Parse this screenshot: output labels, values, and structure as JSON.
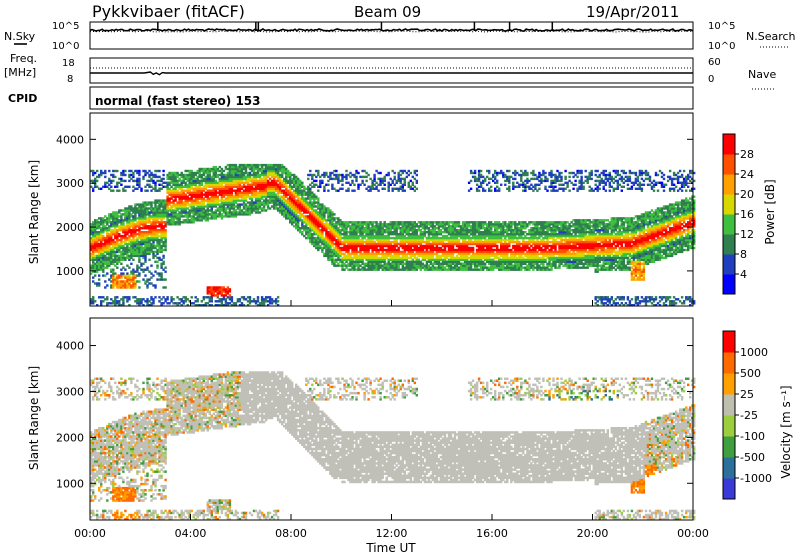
{
  "header": {
    "station": "Pykkvibaer (fitACF)",
    "beam": "Beam 09",
    "date": "19/Apr/2011"
  },
  "noise_panel": {
    "left_label": "N.Sky",
    "left_ticks": [
      "10^5",
      "10^0"
    ],
    "right_label": "N.Search",
    "right_ticks": [
      "10^5",
      "10^0"
    ]
  },
  "freq_panel": {
    "left_label_1": "Freq.",
    "left_label_2": "[MHz]",
    "left_ticks": [
      "18",
      "8"
    ],
    "right_label": "Nave",
    "right_ticks": [
      "60",
      "0"
    ]
  },
  "cpid_panel": {
    "label": "CPID",
    "text": "normal (fast stereo) 153"
  },
  "colors": {
    "power_scale": [
      "#0000ff",
      "#1f3fbf",
      "#2f7f4f",
      "#3fbf3f",
      "#d8d800",
      "#ff9f00",
      "#ff5000",
      "#ff0000"
    ],
    "velocity_scale": [
      "#3a3ad8",
      "#2c6f9a",
      "#3f9f3f",
      "#9bcf3f",
      "#bfbfb0",
      "#ffa000",
      "#ff6a00",
      "#ff0000"
    ],
    "ground_scatter": "#c0c0b8"
  },
  "chart_data": [
    {
      "type": "heatmap",
      "name": "power",
      "ylabel": "Slant Range [km]",
      "yticks": [
        "1000",
        "2000",
        "3000",
        "4000"
      ],
      "ylim": [
        200,
        4600
      ],
      "xlim": [
        0,
        24
      ],
      "colorbar_label": "Power [dB]",
      "colorbar_ticks": [
        "4",
        "8",
        "12",
        "16",
        "20",
        "24",
        "28"
      ],
      "colorbar_range": [
        0,
        30
      ]
    },
    {
      "type": "heatmap",
      "name": "velocity",
      "ylabel": "Slant Range [km]",
      "yticks": [
        "1000",
        "2000",
        "3000",
        "4000"
      ],
      "ylim": [
        200,
        4600
      ],
      "xlim": [
        0,
        24
      ],
      "colorbar_label": "Velocity [m s⁻¹]",
      "colorbar_ticks": [
        "1000",
        "500",
        "25",
        "-25",
        "-100",
        "-500",
        "-1000"
      ]
    }
  ],
  "xaxis": {
    "label": "Time UT",
    "ticks": [
      "00:00",
      "04:00",
      "08:00",
      "12:00",
      "16:00",
      "20:00",
      "00:00"
    ]
  }
}
